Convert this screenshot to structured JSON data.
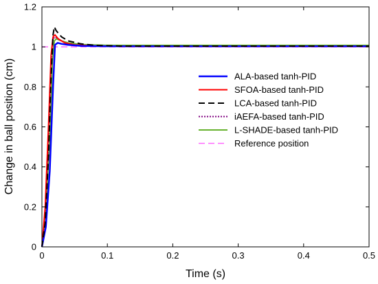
{
  "chart_data": {
    "type": "line",
    "title": "",
    "xlabel": "Time (s)",
    "ylabel": "Change in ball position (cm)",
    "xlim": [
      0,
      0.5
    ],
    "ylim": [
      0,
      1.2
    ],
    "xticks": [
      0,
      0.1,
      0.2,
      0.3,
      0.4,
      0.5
    ],
    "xtick_labels": [
      "0",
      "0.1",
      "0.2",
      "0.3",
      "0.4",
      "0.5"
    ],
    "yticks": [
      0,
      0.2,
      0.4,
      0.6,
      0.8,
      1,
      1.2
    ],
    "ytick_labels": [
      "0",
      "0.2",
      "0.4",
      "0.6",
      "0.8",
      "1",
      "1.2"
    ],
    "grid": false,
    "legend_position": "center-right",
    "series": [
      {
        "name": "ALA-based tanh-PID",
        "color": "#0000ff",
        "style": "solid",
        "width": 2.5,
        "x": [
          0,
          0.006,
          0.012,
          0.017,
          0.02,
          0.024,
          0.03,
          0.04,
          0.06,
          0.1,
          0.2,
          0.3,
          0.4,
          0.5
        ],
        "y": [
          0,
          0.1,
          0.38,
          0.8,
          1.01,
          1.02,
          1.015,
          1.01,
          1.005,
          1.003,
          1.003,
          1.003,
          1.003,
          1.003
        ]
      },
      {
        "name": "SFOA-based tanh-PID",
        "color": "#ff0000",
        "style": "solid",
        "width": 2,
        "x": [
          0,
          0.005,
          0.01,
          0.014,
          0.017,
          0.02,
          0.025,
          0.035,
          0.05,
          0.08,
          0.12,
          0.2,
          0.3,
          0.4,
          0.5
        ],
        "y": [
          0,
          0.2,
          0.6,
          0.96,
          1.05,
          1.06,
          1.04,
          1.02,
          1.01,
          1.005,
          1.002,
          1.002,
          1.002,
          1.002,
          1.002
        ]
      },
      {
        "name": "LCA-based tanh-PID",
        "color": "#000000",
        "style": "dashed",
        "width": 2,
        "x": [
          0,
          0.005,
          0.01,
          0.014,
          0.017,
          0.019,
          0.022,
          0.03,
          0.04,
          0.06,
          0.08,
          0.12,
          0.2,
          0.3,
          0.4,
          0.5
        ],
        "y": [
          0,
          0.12,
          0.45,
          0.85,
          1.06,
          1.1,
          1.08,
          1.05,
          1.03,
          1.015,
          1.008,
          1.004,
          1.004,
          1.004,
          1.004,
          1.004
        ]
      },
      {
        "name": "iAEFA-based tanh-PID",
        "color": "#7f007f",
        "style": "dotted",
        "width": 2,
        "x": [
          0,
          0.005,
          0.01,
          0.014,
          0.017,
          0.02,
          0.025,
          0.035,
          0.05,
          0.08,
          0.12,
          0.2,
          0.3,
          0.4,
          0.5
        ],
        "y": [
          0,
          0.15,
          0.5,
          0.9,
          1.04,
          1.05,
          1.04,
          1.02,
          1.01,
          1.005,
          1.003,
          1.003,
          1.003,
          1.003,
          1.003
        ]
      },
      {
        "name": "L-SHADE-based tanh-PID",
        "color": "#66b22e",
        "style": "solid",
        "width": 2,
        "x": [
          0,
          0.006,
          0.012,
          0.016,
          0.019,
          0.022,
          0.03,
          0.04,
          0.06,
          0.1,
          0.2,
          0.3,
          0.4,
          0.5
        ],
        "y": [
          0,
          0.18,
          0.55,
          0.93,
          1.03,
          1.04,
          1.03,
          1.02,
          1.012,
          1.008,
          1.008,
          1.008,
          1.008,
          1.008
        ]
      },
      {
        "name": "Reference position",
        "color": "#ff66ff",
        "style": "dashed",
        "width": 1.5,
        "x": [
          0,
          0.5
        ],
        "y": [
          1,
          1
        ]
      }
    ]
  }
}
